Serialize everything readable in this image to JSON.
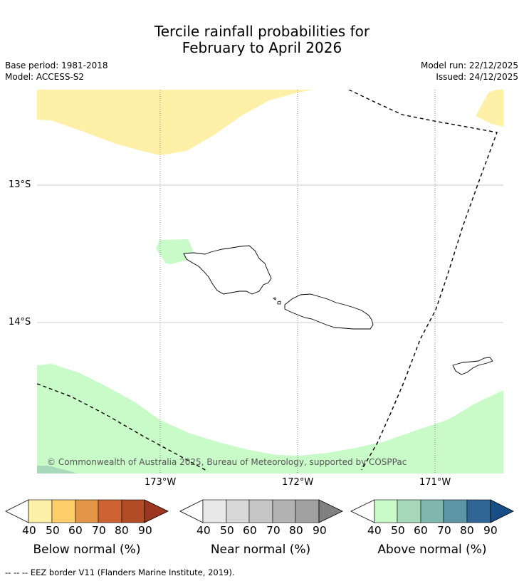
{
  "title_line1": "Tercile rainfall probabilities for",
  "title_line2": "February to April 2026",
  "base_period": "Base period: 1981-2018",
  "model": "Model: ACCESS-S2",
  "model_run": "Model run: 22/12/2025",
  "issued": "Issued: 24/12/2025",
  "copyright": "© Commonwealth of Australia 2025, Bureau of Meteorology, supported by COSPPac",
  "lat_labels": [
    "13°S",
    "14°S"
  ],
  "lon_labels": [
    "173°W",
    "172°W",
    "171°W"
  ],
  "colorbars": [
    {
      "label": "Below normal (%)",
      "ticks": [
        "40",
        "50",
        "60",
        "70",
        "80",
        "90"
      ],
      "colors": [
        "#fff0a8",
        "#fecf6a",
        "#e29546",
        "#cd6332",
        "#b24c27",
        "#9b3720"
      ],
      "under": "#ffffff"
    },
    {
      "label": "Near normal (%)",
      "ticks": [
        "40",
        "50",
        "60",
        "70",
        "80",
        "90"
      ],
      "colors": [
        "#e8e8e8",
        "#d8d8d8",
        "#c6c6c6",
        "#b3b3b3",
        "#a0a0a0",
        "#808080"
      ],
      "under": "#ffffff"
    },
    {
      "label": "Above normal (%)",
      "ticks": [
        "40",
        "50",
        "60",
        "70",
        "80",
        "90"
      ],
      "colors": [
        "#c9fbc8",
        "#a6d8b9",
        "#80b8b1",
        "#5c96a6",
        "#306696",
        "#184e86"
      ],
      "under": "#ffffff"
    }
  ],
  "eez_note": "--  --  -- EEZ border V11 (Flanders Marine Institute, 2019)."
}
